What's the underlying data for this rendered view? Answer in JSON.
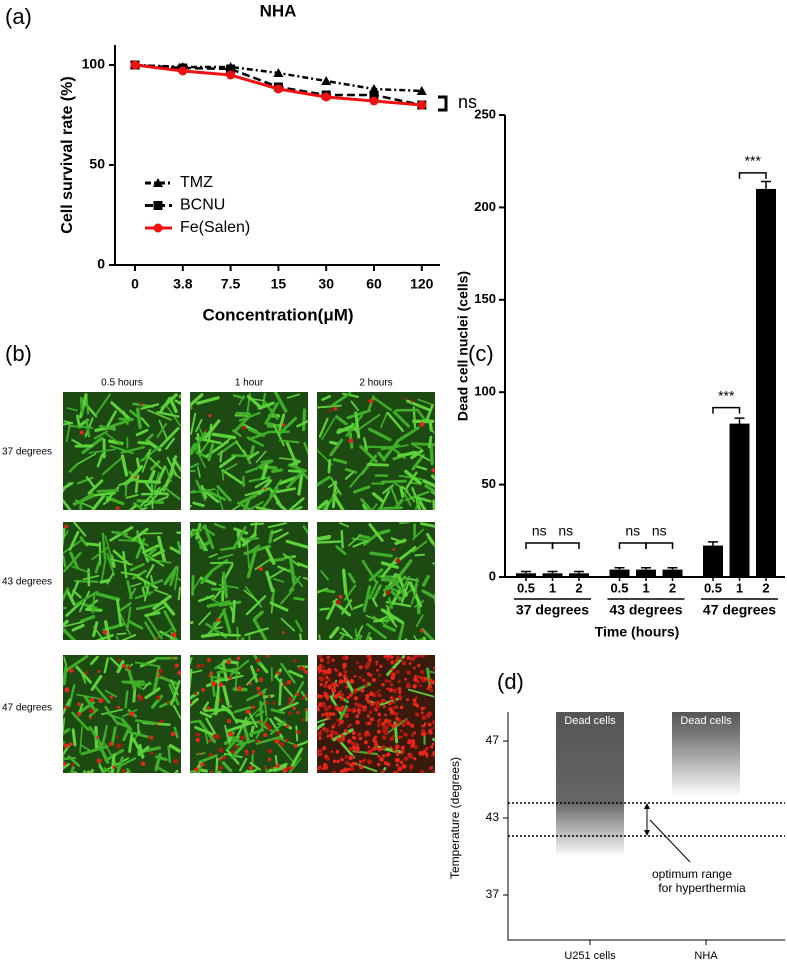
{
  "chart_data": [
    {
      "type": "line",
      "panel_label": "(a)",
      "title": "NHA",
      "x_label": "Concentration(μM)",
      "y_label": "Cell survival rate (%)",
      "categories": [
        "0",
        "3.8",
        "7.5",
        "15",
        "30",
        "60",
        "120"
      ],
      "series": [
        {
          "name": "TMZ",
          "color": "#000000",
          "marker": "triangle",
          "dash": "6,3,2,3",
          "values": [
            100,
            99,
            99,
            96,
            92,
            88,
            87
          ]
        },
        {
          "name": "BCNU",
          "color": "#000000",
          "marker": "square",
          "dash": "8,4",
          "values": [
            100,
            98.5,
            98,
            89,
            85,
            85,
            80
          ]
        },
        {
          "name": "Fe(Salen)",
          "color": "#ee1111",
          "marker": "circle",
          "dash": "none",
          "values": [
            100,
            97,
            95,
            88,
            84,
            82,
            80
          ]
        }
      ],
      "ylim": [
        0,
        110
      ],
      "yticks": [
        0,
        50,
        100
      ],
      "annotation": "ns"
    },
    {
      "type": "grouped_bar",
      "panel_label": "(c)",
      "y_label": "Dead cell nuclei (cells)",
      "x_label": "Time (hours)",
      "groups": [
        "37 degrees",
        "43 degrees",
        "47 degrees"
      ],
      "categories": [
        "0.5",
        "1",
        "2"
      ],
      "color": "#000000",
      "values": [
        [
          2,
          2,
          2
        ],
        [
          4,
          4,
          4
        ],
        [
          17,
          83,
          210
        ]
      ],
      "errors": [
        [
          1,
          1,
          1
        ],
        [
          1,
          1,
          1
        ],
        [
          2,
          3,
          4
        ]
      ],
      "ylim": [
        0,
        250
      ],
      "yticks": [
        0,
        50,
        100,
        150,
        200,
        250
      ],
      "annotations": [
        "ns",
        "ns",
        "ns",
        "ns",
        "***",
        "***"
      ]
    },
    {
      "type": "schematic",
      "panel_label": "(d)",
      "y_label": "Temperature (degrees)",
      "yticks": [
        37,
        43,
        47
      ],
      "categories": [
        "U251 cells",
        "NHA"
      ],
      "region_label": "Dead cells",
      "annotation": [
        "optimum range",
        "for hyperthermia"
      ]
    }
  ],
  "micrographs": {
    "panel_label": "(b)",
    "columns": [
      "0.5 hours",
      "1 hour",
      "2 hours"
    ],
    "rows": [
      "37 degrees",
      "43 degrees",
      "47 degrees"
    ]
  }
}
